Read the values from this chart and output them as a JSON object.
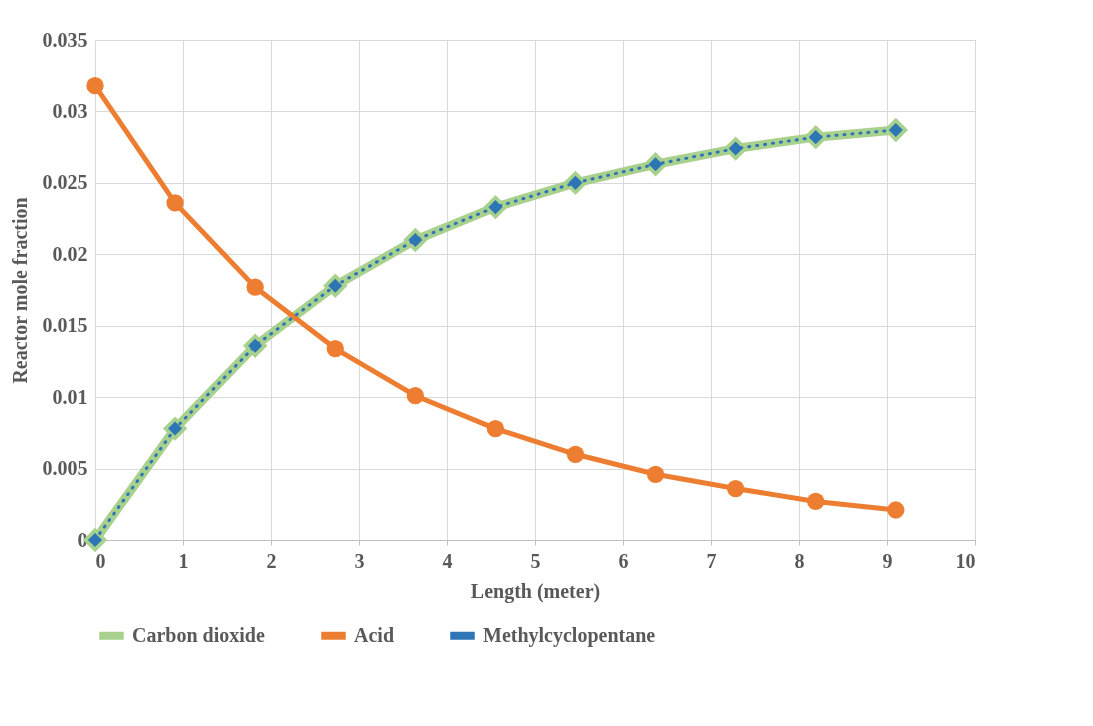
{
  "chart_data": {
    "type": "line",
    "x": [
      0,
      0.91,
      1.82,
      2.73,
      3.64,
      4.55,
      5.46,
      6.37,
      7.28,
      8.19,
      9.1
    ],
    "series": [
      {
        "name": "Carbon dioxide",
        "color": "#a9d18e",
        "marker": "diamond",
        "line_style": "solid",
        "values": [
          0,
          0.0078,
          0.0136,
          0.0178,
          0.021,
          0.0233,
          0.025,
          0.0263,
          0.0274,
          0.0282,
          0.0287
        ]
      },
      {
        "name": "Acid",
        "color": "#ed7d31",
        "marker": "circle",
        "line_style": "solid",
        "values": [
          0.0318,
          0.0236,
          0.0177,
          0.0134,
          0.0101,
          0.0078,
          0.006,
          0.0046,
          0.0036,
          0.0027,
          0.0021
        ]
      },
      {
        "name": "Methylcyclopentane",
        "color": "#2e75b6",
        "marker": "diamond",
        "line_style": "dotted",
        "values": [
          0,
          0.0078,
          0.0136,
          0.0178,
          0.021,
          0.0233,
          0.025,
          0.0263,
          0.0274,
          0.0282,
          0.0287
        ]
      }
    ],
    "xlabel": "Length (meter)",
    "ylabel": "Reactor mole fraction",
    "xlim": [
      0,
      10
    ],
    "xticks": [
      0,
      1,
      2,
      3,
      4,
      5,
      6,
      7,
      8,
      9,
      10
    ],
    "ylim": [
      0,
      0.035
    ],
    "yticks": [
      0,
      0.005,
      0.01,
      0.015,
      0.02,
      0.025,
      0.03,
      0.035
    ],
    "grid": true,
    "legend": "bottom"
  }
}
